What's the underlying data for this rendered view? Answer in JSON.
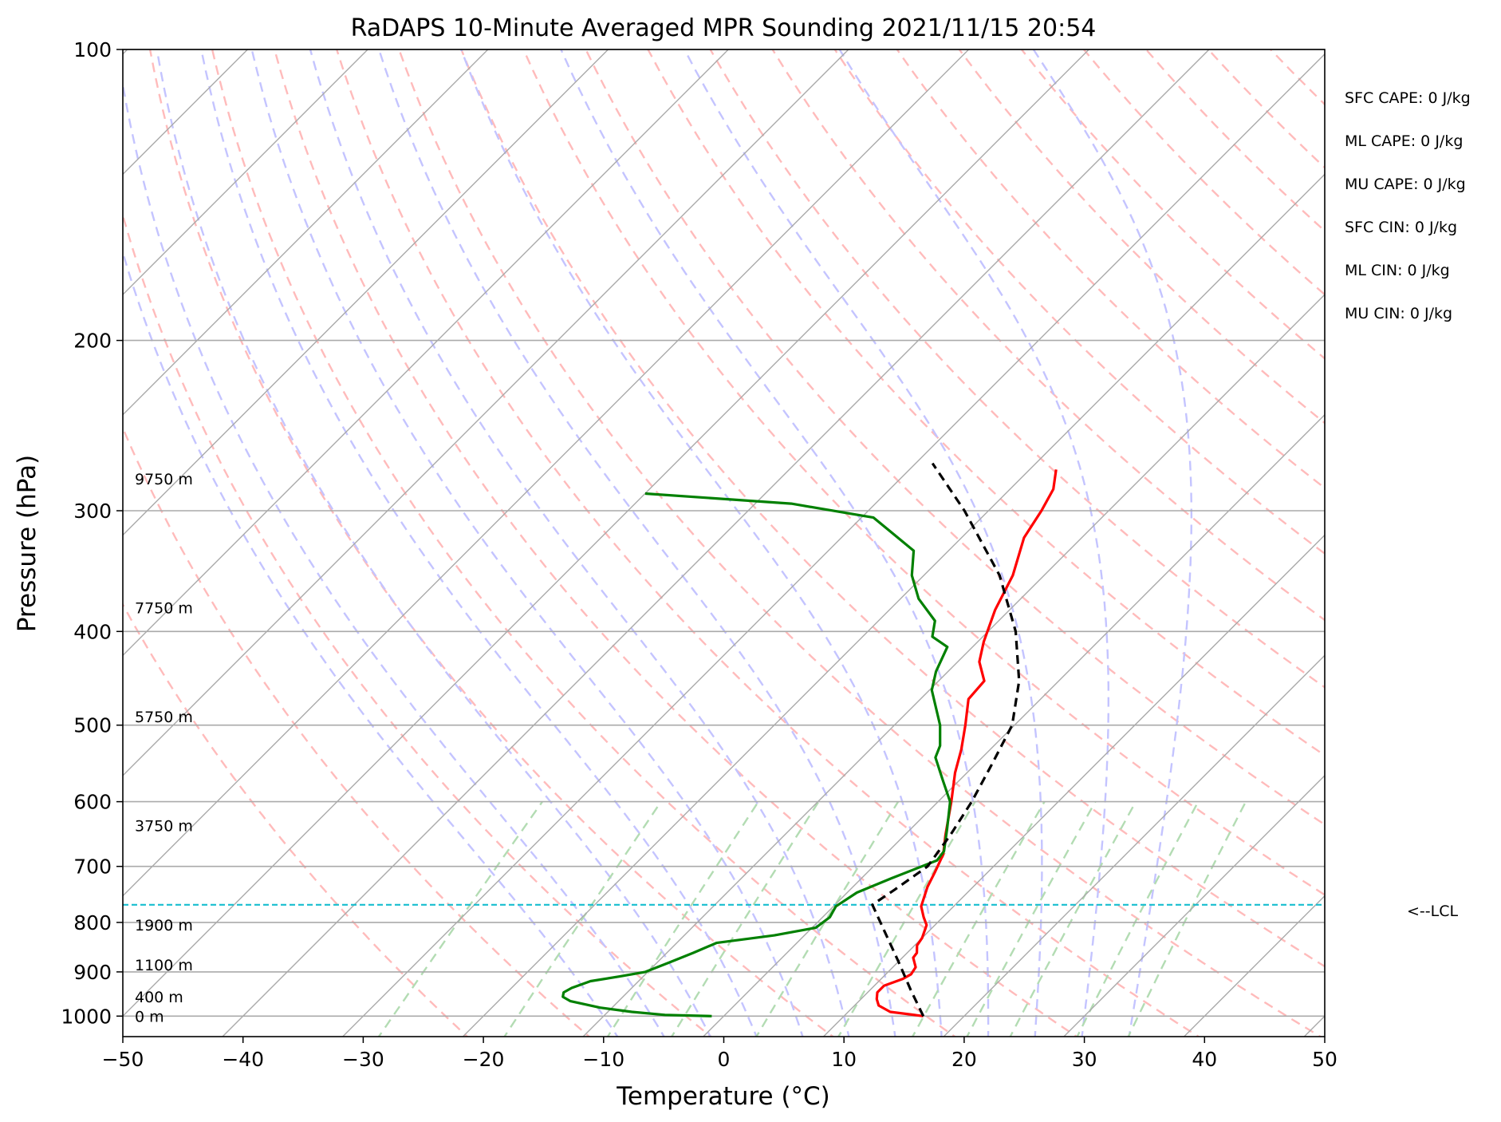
{
  "chart_data": {
    "type": "skew-t",
    "title": "RaDAPS 10-Minute Averaged MPR Sounding 2021/11/15 20:54",
    "xlabel": "Temperature (°C)",
    "ylabel": "Pressure (hPa)",
    "xlim": [
      -50,
      50
    ],
    "ylim": [
      1050,
      100
    ],
    "y_scale": "log",
    "grid": true,
    "x_ticks": [
      -50,
      -40,
      -30,
      -20,
      -10,
      0,
      10,
      20,
      30,
      40,
      50
    ],
    "x_tick_labels": [
      "−50",
      "−40",
      "−30",
      "−20",
      "−10",
      "0",
      "10",
      "20",
      "30",
      "40",
      "50"
    ],
    "y_ticks": [
      1000,
      900,
      800,
      700,
      600,
      500,
      400,
      300,
      200,
      100
    ],
    "y_tick_labels": [
      "1000",
      "900",
      "800",
      "700",
      "600",
      "500",
      "400",
      "300",
      "200",
      "100"
    ],
    "series": [
      {
        "key": "temperature",
        "color": "#ff0000",
        "points": [
          [
            1000,
            16.6
          ],
          [
            990,
            13.5
          ],
          [
            975,
            12.0
          ],
          [
            960,
            11.3
          ],
          [
            945,
            10.8
          ],
          [
            930,
            10.8
          ],
          [
            915,
            11.8
          ],
          [
            905,
            12.1
          ],
          [
            890,
            11.9
          ],
          [
            870,
            10.9
          ],
          [
            860,
            10.8
          ],
          [
            845,
            10.2
          ],
          [
            830,
            10.0
          ],
          [
            805,
            9.3
          ],
          [
            790,
            8.4
          ],
          [
            770,
            7.3
          ],
          [
            735,
            6.2
          ],
          [
            710,
            5.6
          ],
          [
            680,
            4.8
          ],
          [
            650,
            3.4
          ],
          [
            600,
            1.1
          ],
          [
            560,
            -1.0
          ],
          [
            530,
            -2.4
          ],
          [
            500,
            -4.1
          ],
          [
            470,
            -6.0
          ],
          [
            450,
            -6.2
          ],
          [
            430,
            -8.2
          ],
          [
            410,
            -9.5
          ],
          [
            380,
            -11.2
          ],
          [
            350,
            -12.6
          ],
          [
            320,
            -14.8
          ],
          [
            300,
            -15.6
          ],
          [
            285,
            -16.4
          ],
          [
            272,
            -17.8
          ]
        ]
      },
      {
        "key": "dewpoint",
        "color": "#008000",
        "points": [
          [
            1000,
            -1.0
          ],
          [
            997,
            -5.0
          ],
          [
            990,
            -8.0
          ],
          [
            980,
            -11.0
          ],
          [
            965,
            -14.0
          ],
          [
            955,
            -15.0
          ],
          [
            945,
            -15.3
          ],
          [
            935,
            -15.0
          ],
          [
            920,
            -14.0
          ],
          [
            910,
            -12.0
          ],
          [
            900,
            -10.2
          ],
          [
            880,
            -9.0
          ],
          [
            860,
            -7.8
          ],
          [
            840,
            -6.7
          ],
          [
            825,
            -2.5
          ],
          [
            810,
            0.3
          ],
          [
            790,
            0.6
          ],
          [
            770,
            0.2
          ],
          [
            745,
            0.8
          ],
          [
            720,
            2.5
          ],
          [
            690,
            4.8
          ],
          [
            675,
            4.6
          ],
          [
            640,
            3.0
          ],
          [
            600,
            1.0
          ],
          [
            570,
            -1.4
          ],
          [
            540,
            -3.9
          ],
          [
            525,
            -4.5
          ],
          [
            500,
            -6.2
          ],
          [
            460,
            -9.8
          ],
          [
            440,
            -11.0
          ],
          [
            415,
            -12.1
          ],
          [
            405,
            -14.2
          ],
          [
            390,
            -15.3
          ],
          [
            370,
            -18.5
          ],
          [
            350,
            -21.0
          ],
          [
            330,
            -22.9
          ],
          [
            315,
            -26.5
          ],
          [
            305,
            -29.0
          ],
          [
            295,
            -37.0
          ],
          [
            288,
            -50.0
          ]
        ]
      },
      {
        "key": "parcel",
        "color": "#000000",
        "points": [
          [
            1000,
            16.6
          ],
          [
            940,
            13.4
          ],
          [
            880,
            10.1
          ],
          [
            820,
            6.5
          ],
          [
            767,
            3.1
          ],
          [
            740,
            3.7
          ],
          [
            700,
            4.5
          ],
          [
            650,
            3.8
          ],
          [
            600,
            2.8
          ],
          [
            550,
            1.4
          ],
          [
            500,
            -0.2
          ],
          [
            450,
            -3.3
          ],
          [
            400,
            -7.7
          ],
          [
            350,
            -13.7
          ],
          [
            300,
            -22.0
          ],
          [
            268,
            -28.6
          ]
        ]
      }
    ],
    "lcl": {
      "pressure": 767,
      "label": "<--LCL"
    },
    "height_labels": [
      {
        "pressure": 1000,
        "text": "0 m"
      },
      {
        "pressure": 955,
        "text": "400 m"
      },
      {
        "pressure": 885,
        "text": "1100 m"
      },
      {
        "pressure": 805,
        "text": "1900 m"
      },
      {
        "pressure": 635,
        "text": "3750 m"
      },
      {
        "pressure": 490,
        "text": "5750 m"
      },
      {
        "pressure": 378,
        "text": "7750 m"
      },
      {
        "pressure": 278,
        "text": "9750 m"
      }
    ],
    "stats": [
      "SFC CAPE: 0 J/kg",
      "ML CAPE: 0 J/kg",
      "MU CAPE: 0 J/kg",
      "SFC CIN: 0 J/kg",
      "ML CIN: 0 J/kg",
      "MU CIN: 0 J/kg"
    ],
    "colors": {
      "isotherm": "#aaaaaa",
      "isobar": "#aaaaaa",
      "dry_adiabat": "#ffbbbb",
      "moist_adiabat": "#c4c4ff",
      "mixing_ratio": "#b3dcb3",
      "lcl_line": "#17becf"
    }
  }
}
